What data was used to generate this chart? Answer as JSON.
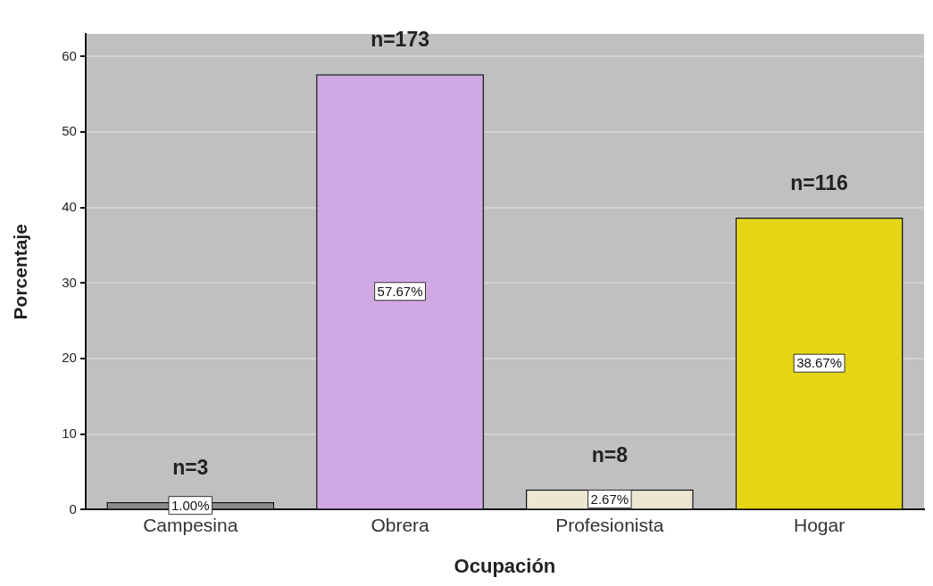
{
  "chart_data": {
    "type": "bar",
    "categories": [
      "Campesina",
      "Obrera",
      "Profesionista",
      "Hogar"
    ],
    "values": [
      1.0,
      57.67,
      2.67,
      38.67
    ],
    "colors": [
      "#8c8c8c",
      "#d0a8e4",
      "#ede6d2",
      "#e4d614"
    ],
    "value_labels": [
      "1.00%",
      "57.67%",
      "2.67%",
      "38.67%"
    ],
    "annotations": [
      {
        "text": "n=3",
        "x": "Campesina",
        "y": 1.0
      },
      {
        "text": "n=173",
        "x": "Obrera",
        "y": 57.67
      },
      {
        "text": "n=8",
        "x": "Profesionista",
        "y": 2.67
      },
      {
        "text": "n=116",
        "x": "Hogar",
        "y": 38.67
      }
    ],
    "xlabel": "Ocupación",
    "ylabel": "Porcentaje",
    "ylim": [
      0,
      63
    ],
    "yticks": [
      0,
      10,
      20,
      30,
      40,
      50,
      60
    ],
    "grid": "y",
    "legend": false
  }
}
